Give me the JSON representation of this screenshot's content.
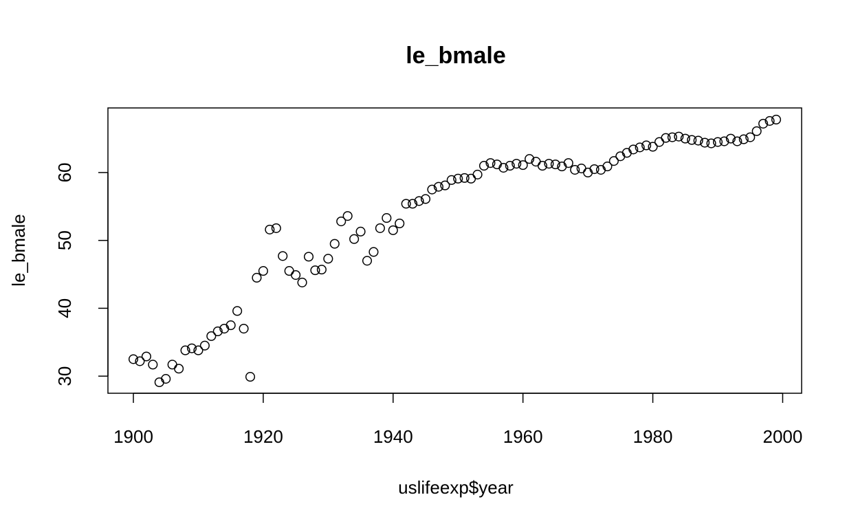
{
  "chart_data": {
    "type": "scatter",
    "title": "le_bmale",
    "xlabel": "uslifeexp$year",
    "ylabel": "le_bmale",
    "xlim": [
      1900,
      1999
    ],
    "ylim": [
      29.1,
      68.0
    ],
    "x_ticks": [
      1900,
      1920,
      1940,
      1960,
      1980,
      2000
    ],
    "y_ticks": [
      30,
      40,
      50,
      60
    ],
    "grid": false,
    "legend": "none",
    "series": [
      {
        "x": [
          1900,
          1901,
          1902,
          1903,
          1904,
          1905,
          1906,
          1907,
          1908,
          1909,
          1910,
          1911,
          1912,
          1913,
          1914,
          1915,
          1916,
          1917,
          1918,
          1919,
          1920,
          1921,
          1922,
          1923,
          1924,
          1925,
          1926,
          1927,
          1928,
          1929,
          1930,
          1931,
          1932,
          1933,
          1934,
          1935,
          1936,
          1937,
          1938,
          1939,
          1940,
          1941,
          1942,
          1943,
          1944,
          1945,
          1946,
          1947,
          1948,
          1949,
          1950,
          1951,
          1952,
          1953,
          1954,
          1955,
          1956,
          1957,
          1958,
          1959,
          1960,
          1961,
          1962,
          1963,
          1964,
          1965,
          1966,
          1967,
          1968,
          1969,
          1970,
          1971,
          1972,
          1973,
          1974,
          1975,
          1976,
          1977,
          1978,
          1979,
          1980,
          1981,
          1982,
          1983,
          1984,
          1985,
          1986,
          1987,
          1988,
          1989,
          1990,
          1991,
          1992,
          1993,
          1994,
          1995,
          1996,
          1997,
          1998,
          1999
        ],
        "y": [
          32.5,
          32.2,
          32.9,
          31.7,
          29.1,
          29.6,
          31.7,
          31.1,
          33.8,
          34.1,
          33.8,
          34.5,
          35.9,
          36.6,
          37.0,
          37.5,
          39.6,
          37.0,
          29.9,
          44.5,
          45.5,
          51.6,
          51.8,
          47.7,
          45.5,
          44.9,
          43.8,
          47.6,
          45.6,
          45.7,
          47.3,
          49.5,
          52.8,
          53.6,
          50.2,
          51.3,
          47.0,
          48.3,
          51.8,
          53.3,
          51.5,
          52.5,
          55.4,
          55.4,
          55.8,
          56.1,
          57.5,
          57.9,
          58.1,
          58.9,
          59.1,
          59.2,
          59.1,
          59.7,
          61.0,
          61.4,
          61.2,
          60.7,
          61.0,
          61.3,
          61.1,
          62.0,
          61.6,
          61.0,
          61.3,
          61.2,
          60.9,
          61.4,
          60.4,
          60.6,
          60.0,
          60.5,
          60.4,
          60.9,
          61.7,
          62.4,
          62.9,
          63.4,
          63.7,
          64.0,
          63.8,
          64.5,
          65.1,
          65.2,
          65.3,
          65.0,
          64.8,
          64.7,
          64.4,
          64.3,
          64.5,
          64.6,
          65.0,
          64.6,
          64.9,
          65.2,
          66.1,
          67.2,
          67.6,
          67.8
        ]
      }
    ]
  }
}
